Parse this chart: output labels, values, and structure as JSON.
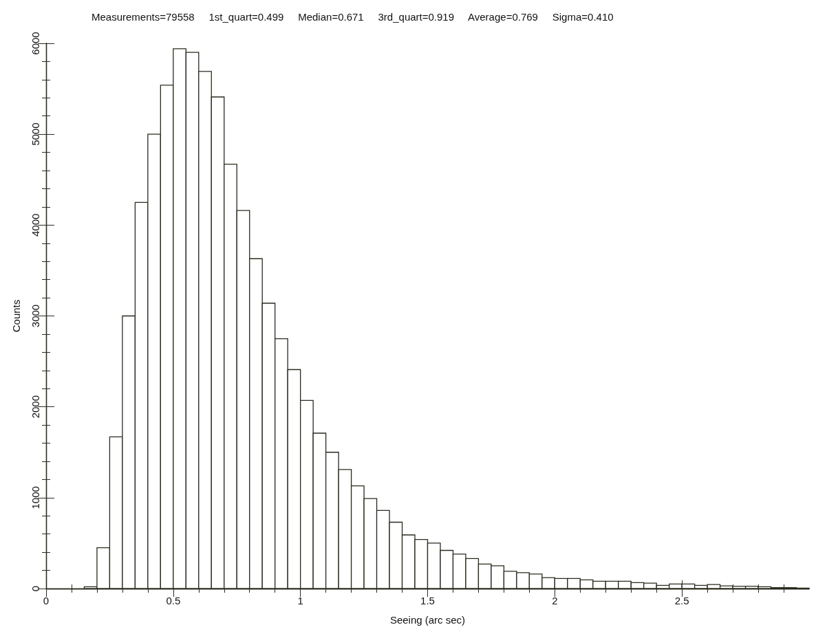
{
  "chart_data": {
    "type": "histogram",
    "title": "Measurements=79558     1st_quart=0.499     Median=0.671     3rd_quart=0.919     Average=0.769     Sigma=0.410",
    "xlabel": "Seeing (arc sec)",
    "ylabel": "Counts",
    "bins": [
      0.15,
      0.2,
      0.25,
      0.3,
      0.35,
      0.4,
      0.45,
      0.5,
      0.55,
      0.6,
      0.65,
      0.7,
      0.75,
      0.8,
      0.85,
      0.9,
      0.95,
      1.0,
      1.05,
      1.1,
      1.15,
      1.2,
      1.25,
      1.3,
      1.35,
      1.4,
      1.45,
      1.5,
      1.55,
      1.6,
      1.65,
      1.7,
      1.75,
      1.8,
      1.85,
      1.9,
      1.95,
      2.0,
      2.05,
      2.1,
      2.15,
      2.2,
      2.25,
      2.3,
      2.35,
      2.4,
      2.45,
      2.5,
      2.55,
      2.6,
      2.65,
      2.7,
      2.75,
      2.8,
      2.85,
      2.9,
      2.95,
      3.0
    ],
    "values": [
      20,
      450,
      1670,
      3000,
      4250,
      5000,
      5540,
      5940,
      5900,
      5690,
      5410,
      4670,
      4160,
      3630,
      3140,
      2750,
      2410,
      2070,
      1710,
      1500,
      1310,
      1130,
      990,
      860,
      730,
      590,
      540,
      500,
      420,
      380,
      330,
      270,
      250,
      190,
      175,
      160,
      120,
      110,
      110,
      95,
      80,
      80,
      80,
      65,
      60,
      35,
      50,
      50,
      35,
      45,
      30,
      25,
      25,
      20,
      10,
      10,
      5
    ],
    "color": "#ffffff",
    "xlim": [
      0,
      3
    ],
    "xticks": [
      0,
      0.5,
      1,
      1.5,
      2,
      2.5
    ],
    "ylim": [
      0,
      6000
    ],
    "yticks": [
      0,
      1000,
      2000,
      3000,
      4000,
      5000,
      6000
    ],
    "grid": false
  }
}
